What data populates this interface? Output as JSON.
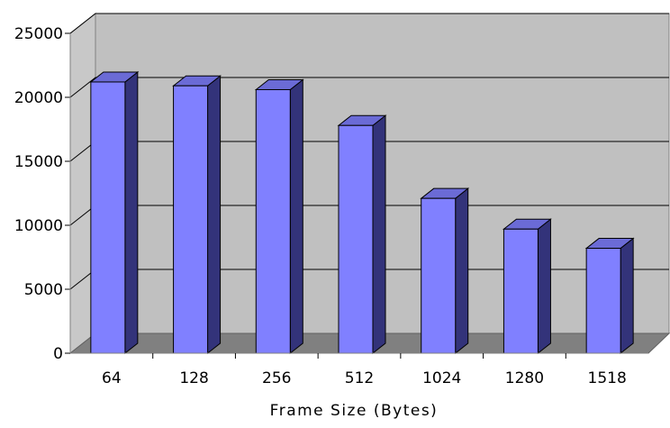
{
  "chart_data": {
    "type": "bar",
    "style": "3d-column",
    "title": "",
    "xlabel": "Frame Size (Bytes)",
    "ylabel": "",
    "categories": [
      "64",
      "128",
      "256",
      "512",
      "1024",
      "1280",
      "1518"
    ],
    "values": [
      21200,
      20900,
      20600,
      17800,
      12100,
      9700,
      8200
    ],
    "ylim": [
      0,
      25000
    ],
    "yticks": [
      "0",
      "5000",
      "10000",
      "15000",
      "20000",
      "25000"
    ],
    "grid": true,
    "legend": "none",
    "colors": {
      "bar_front": "#8080ff",
      "bar_side": "#33337a",
      "bar_top": "#6b6bd6",
      "back_wall": "#c0c0c0",
      "side_wall": "#c8c8c8",
      "floor": "#808080",
      "gridline": "#000000"
    }
  }
}
